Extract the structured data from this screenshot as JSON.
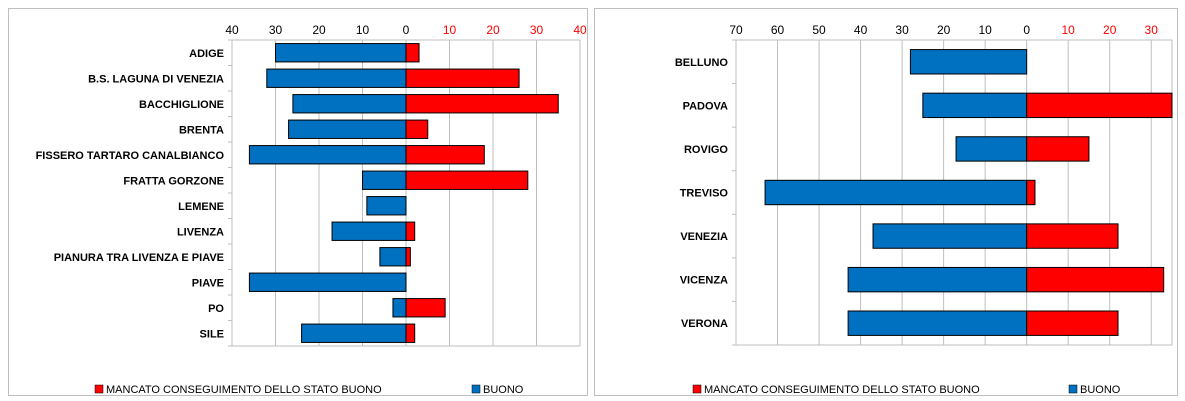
{
  "colors": {
    "bad": "#ff0000",
    "good": "#0070c0",
    "grid": "#bfbfbf",
    "negTick": "#000000",
    "posTick": "#ff0000"
  },
  "legend": {
    "bad_label": "MANCATO CONSEGUIMENTO DELLO STATO BUONO",
    "good_label": "BUONO"
  },
  "chart_data": [
    {
      "type": "bar",
      "orientation": "horizontal-diverging",
      "title": "",
      "xlim": [
        -40,
        40
      ],
      "x_ticks": [
        -40,
        -30,
        -20,
        -10,
        0,
        10,
        20,
        30,
        40
      ],
      "tick_labels": [
        "40",
        "30",
        "20",
        "10",
        "0",
        "10",
        "20",
        "30",
        "40"
      ],
      "grid": true,
      "legend_position": "bottom",
      "categories": [
        "ADIGE",
        "B.S. LAGUNA DI VENEZIA",
        "BACCHIGLIONE",
        "BRENTA",
        "FISSERO TARTARO CANALBIANCO",
        "FRATTA GORZONE",
        "LEMENE",
        "LIVENZA",
        "PIANURA TRA LIVENZA E PIAVE",
        "PIAVE",
        "PO",
        "SILE"
      ],
      "series": [
        {
          "name": "MANCATO CONSEGUIMENTO DELLO STATO BUONO",
          "values": [
            3,
            26,
            35,
            5,
            18,
            28,
            0,
            2,
            1,
            0,
            9,
            2
          ]
        },
        {
          "name": "BUONO",
          "values": [
            30,
            32,
            26,
            27,
            36,
            10,
            9,
            17,
            6,
            36,
            3,
            24
          ]
        }
      ]
    },
    {
      "type": "bar",
      "orientation": "horizontal-diverging",
      "title": "",
      "xlim": [
        -70,
        35
      ],
      "x_ticks": [
        -70,
        -60,
        -50,
        -40,
        -30,
        -20,
        -10,
        0,
        10,
        20,
        30
      ],
      "tick_labels": [
        "70",
        "60",
        "50",
        "40",
        "30",
        "20",
        "10",
        "0",
        "10",
        "20",
        "30"
      ],
      "grid": true,
      "legend_position": "bottom",
      "categories": [
        "BELLUNO",
        "PADOVA",
        "ROVIGO",
        "TREVISO",
        "VENEZIA",
        "VICENZA",
        "VERONA"
      ],
      "series": [
        {
          "name": "MANCATO CONSEGUIMENTO DELLO STATO BUONO",
          "values": [
            0,
            35,
            15,
            2,
            22,
            33,
            22
          ]
        },
        {
          "name": "BUONO",
          "values": [
            28,
            25,
            17,
            63,
            37,
            43,
            43
          ]
        }
      ]
    }
  ]
}
